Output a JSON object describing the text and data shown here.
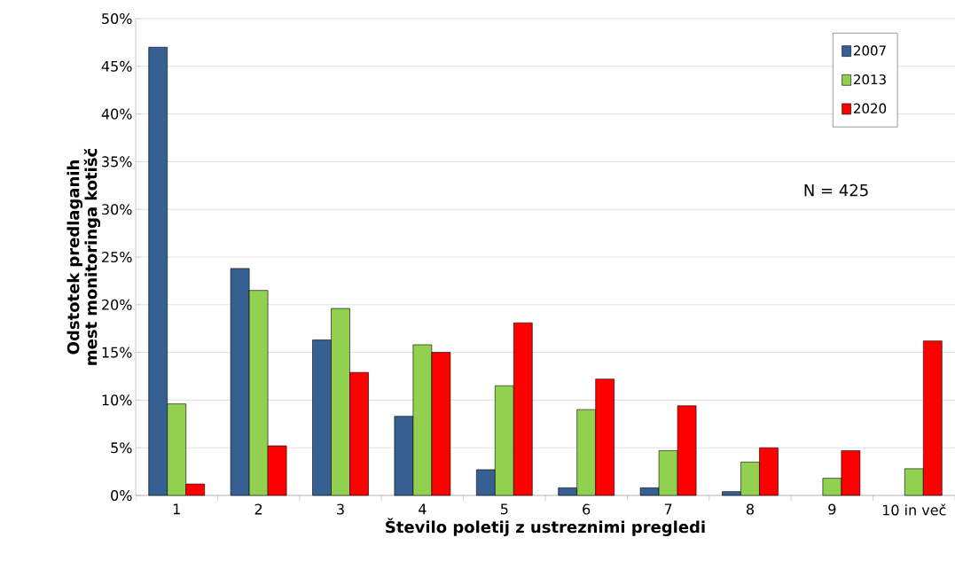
{
  "chart_data": {
    "type": "bar",
    "xlabel": "Število poletij z ustreznimi pregledi",
    "ylabel": "Odstotek predlaganih mest monitoringa kotišč",
    "categories": [
      "1",
      "2",
      "3",
      "4",
      "5",
      "6",
      "7",
      "8",
      "9",
      "10 in več"
    ],
    "series": [
      {
        "name": "2007",
        "color": "#376092",
        "values": [
          47,
          23.8,
          16.3,
          8.3,
          2.7,
          0.8,
          0.8,
          0.4,
          null,
          null
        ]
      },
      {
        "name": "2013",
        "color": "#92d050",
        "values": [
          9.6,
          21.5,
          19.6,
          15.8,
          11.5,
          9.0,
          4.7,
          3.5,
          1.8,
          2.8
        ]
      },
      {
        "name": "2020",
        "color": "#ff0000",
        "values": [
          1.2,
          5.2,
          12.9,
          15.0,
          18.1,
          12.2,
          9.4,
          5.0,
          4.7,
          16.2
        ]
      }
    ],
    "ylim": [
      0,
      50
    ],
    "yticks": [
      {
        "value": 0,
        "label": "0%"
      },
      {
        "value": 5,
        "label": "5%"
      },
      {
        "value": 10,
        "label": "10%"
      },
      {
        "value": 15,
        "label": "15%"
      },
      {
        "value": 20,
        "label": "20%"
      },
      {
        "value": 25,
        "label": "25%"
      },
      {
        "value": 30,
        "label": "30%"
      },
      {
        "value": 35,
        "label": "35%"
      },
      {
        "value": 40,
        "label": "40%"
      },
      {
        "value": 45,
        "label": "45%"
      },
      {
        "value": 50,
        "label": "50%"
      }
    ],
    "grid": "y",
    "legend": "top right",
    "annotations": [
      "N = 425"
    ]
  }
}
